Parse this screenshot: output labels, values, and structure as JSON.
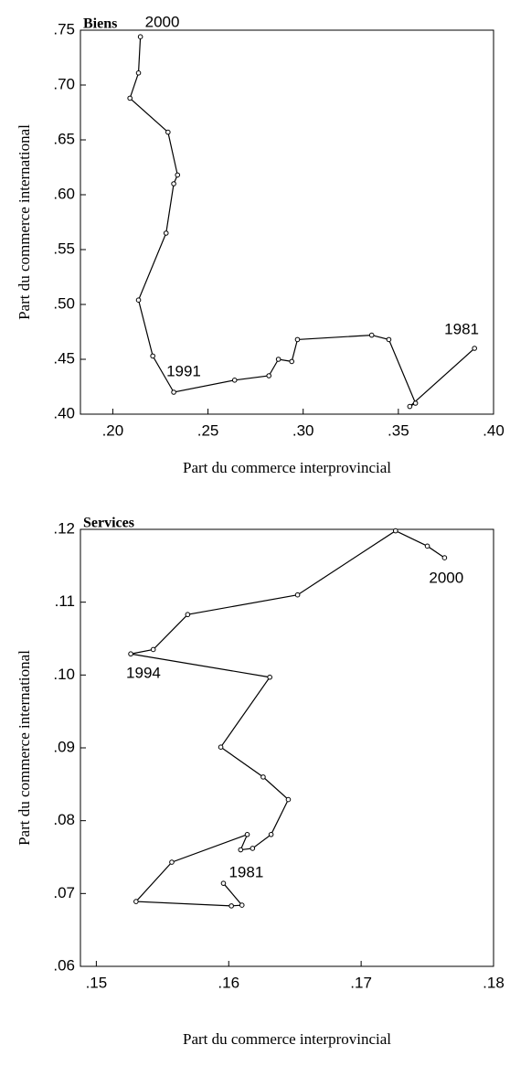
{
  "chart_data": [
    {
      "type": "line",
      "title": "Biens",
      "x_label": "Part du commerce interprovincial",
      "y_label": "Part du commerce international",
      "x": [
        0.39,
        0.356,
        0.359,
        0.345,
        0.336,
        0.297,
        0.294,
        0.287,
        0.282,
        0.264,
        0.232,
        0.221,
        0.2135,
        0.228,
        0.232,
        0.234,
        0.229,
        0.209,
        0.2135,
        0.2145
      ],
      "values": [
        0.46,
        0.407,
        0.41,
        0.468,
        0.472,
        0.468,
        0.448,
        0.45,
        0.435,
        0.431,
        0.42,
        0.453,
        0.504,
        0.565,
        0.61,
        0.618,
        0.657,
        0.688,
        0.711,
        0.744
      ],
      "color": "#000000",
      "annotations": [
        "1981",
        "1991",
        "2000"
      ],
      "xlim": [
        0.183,
        0.4
      ],
      "xticks": [
        {
          "value": 0.2,
          "label": ".20"
        },
        {
          "value": 0.25,
          "label": ".25"
        },
        {
          "value": 0.3,
          "label": ".30"
        },
        {
          "value": 0.35,
          "label": ".35"
        },
        {
          "value": 0.4,
          "label": ".40"
        }
      ],
      "ylim": [
        0.4,
        0.75
      ],
      "yticks": [
        {
          "value": 0.4,
          "label": ".40"
        },
        {
          "value": 0.45,
          "label": ".45"
        },
        {
          "value": 0.5,
          "label": ".50"
        },
        {
          "value": 0.55,
          "label": ".55"
        },
        {
          "value": 0.6,
          "label": ".60"
        },
        {
          "value": 0.65,
          "label": ".65"
        },
        {
          "value": 0.7,
          "label": ".70"
        },
        {
          "value": 0.75,
          "label": ".75"
        }
      ]
    },
    {
      "type": "line",
      "title": "Services",
      "x_label": "Part du commerce interprovincial",
      "y_label": "Part du commerce international",
      "x": [
        0.1596,
        0.161,
        0.1602,
        0.153,
        0.1557,
        0.1614,
        0.1609,
        0.1618,
        0.1632,
        0.1645,
        0.1626,
        0.1594,
        0.1631,
        0.1526,
        0.1543,
        0.1569,
        0.1652,
        0.1726,
        0.175,
        0.1763
      ],
      "values": [
        0.0714,
        0.0684,
        0.0683,
        0.0689,
        0.0743,
        0.0781,
        0.076,
        0.0762,
        0.0781,
        0.0829,
        0.086,
        0.0901,
        0.0997,
        0.1029,
        0.1035,
        0.1083,
        0.111,
        0.1198,
        0.1177,
        0.1161
      ],
      "color": "#000000",
      "annotations": [
        "1981",
        "1994",
        "2000"
      ],
      "xlim": [
        0.1488,
        0.18
      ],
      "xticks": [
        {
          "value": 0.15,
          "label": ".15"
        },
        {
          "value": 0.16,
          "label": ".16"
        },
        {
          "value": 0.17,
          "label": ".17"
        },
        {
          "value": 0.18,
          "label": ".18"
        }
      ],
      "ylim": [
        0.06,
        0.12
      ],
      "yticks": [
        {
          "value": 0.06,
          "label": ".06"
        },
        {
          "value": 0.07,
          "label": ".07"
        },
        {
          "value": 0.08,
          "label": ".08"
        },
        {
          "value": 0.09,
          "label": ".09"
        },
        {
          "value": 0.1,
          "label": ".10"
        },
        {
          "value": 0.11,
          "label": ".11"
        },
        {
          "value": 0.12,
          "label": ".12"
        }
      ]
    }
  ]
}
